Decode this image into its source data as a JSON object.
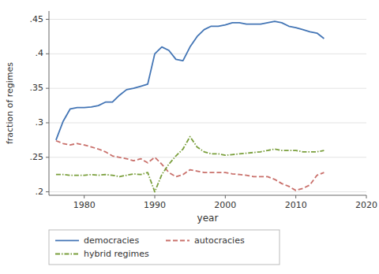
{
  "chart_data": {
    "type": "line",
    "x": [
      1976,
      1977,
      1978,
      1979,
      1980,
      1981,
      1982,
      1983,
      1984,
      1985,
      1986,
      1987,
      1988,
      1989,
      1990,
      1991,
      1992,
      1993,
      1994,
      1995,
      1996,
      1997,
      1998,
      1999,
      2000,
      2001,
      2002,
      2003,
      2004,
      2005,
      2006,
      2007,
      2008,
      2009,
      2010,
      2011,
      2012,
      2013,
      2014
    ],
    "series": [
      {
        "name": "democracies",
        "color": "#4375b5",
        "line_style": "solid",
        "values": [
          0.275,
          0.302,
          0.32,
          0.322,
          0.322,
          0.323,
          0.325,
          0.33,
          0.33,
          0.34,
          0.348,
          0.35,
          0.353,
          0.356,
          0.4,
          0.41,
          0.405,
          0.392,
          0.39,
          0.41,
          0.425,
          0.435,
          0.44,
          0.44,
          0.442,
          0.445,
          0.445,
          0.443,
          0.443,
          0.443,
          0.445,
          0.447,
          0.445,
          0.44,
          0.438,
          0.435,
          0.432,
          0.43,
          0.422
        ]
      },
      {
        "name": "autocracies",
        "color": "#c9706b",
        "line_style": "dashed",
        "values": [
          0.274,
          0.27,
          0.268,
          0.27,
          0.268,
          0.265,
          0.262,
          0.258,
          0.252,
          0.25,
          0.248,
          0.245,
          0.248,
          0.242,
          0.25,
          0.24,
          0.228,
          0.222,
          0.225,
          0.232,
          0.23,
          0.228,
          0.228,
          0.228,
          0.228,
          0.226,
          0.225,
          0.224,
          0.222,
          0.222,
          0.222,
          0.218,
          0.212,
          0.208,
          0.202,
          0.205,
          0.21,
          0.224,
          0.228
        ]
      },
      {
        "name": "hybrid regimes",
        "color": "#7a9f3c",
        "line_style": "dashdot",
        "values": [
          0.225,
          0.225,
          0.224,
          0.224,
          0.224,
          0.225,
          0.224,
          0.225,
          0.224,
          0.222,
          0.224,
          0.226,
          0.225,
          0.228,
          0.2,
          0.225,
          0.24,
          0.252,
          0.262,
          0.28,
          0.265,
          0.258,
          0.255,
          0.255,
          0.253,
          0.254,
          0.255,
          0.256,
          0.257,
          0.258,
          0.26,
          0.262,
          0.26,
          0.26,
          0.26,
          0.258,
          0.258,
          0.258,
          0.26
        ]
      }
    ],
    "xlabel": "year",
    "ylabel": "fraction of regimes",
    "xlim": [
      1975,
      2020
    ],
    "ylim": [
      0.195,
      0.462
    ],
    "xticks": [
      1980,
      1990,
      2000,
      2010,
      2020
    ],
    "yticks": [
      {
        "value": 0.2,
        "label": ".2"
      },
      {
        "value": 0.25,
        "label": ".25"
      },
      {
        "value": 0.3,
        "label": ".3"
      },
      {
        "value": 0.35,
        "label": ".35"
      },
      {
        "value": 0.4,
        "label": ".4"
      },
      {
        "value": 0.45,
        "label": ".45"
      }
    ],
    "grid": true,
    "legend": "bottom"
  }
}
